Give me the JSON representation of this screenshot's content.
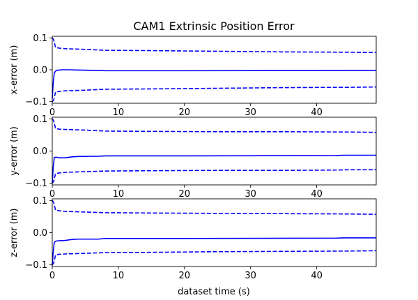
{
  "chart_data": {
    "type": "line",
    "title": "CAM1 Extrinsic Position Error",
    "xlabel": "dataset time (s)",
    "xlim": [
      0,
      49
    ],
    "xticks": [
      0,
      10,
      20,
      30,
      40
    ],
    "grid": false,
    "line_color": "#0000ff",
    "panels": [
      {
        "ylabel": "x-error (m)",
        "ylim": [
          -0.105,
          0.105
        ],
        "yticks": [
          -0.1,
          0.0,
          0.1
        ],
        "ytick_labels": [
          "−0.1",
          "0.0",
          "0.1"
        ],
        "series": [
          {
            "style": "dashed",
            "points": [
              [
                0,
                0.1
              ],
              [
                0.2,
                0.095
              ],
              [
                0.5,
                0.07
              ],
              [
                1,
                0.068
              ],
              [
                2,
                0.066
              ],
              [
                5,
                0.064
              ],
              [
                8,
                0.061
              ],
              [
                15,
                0.06
              ],
              [
                25,
                0.058
              ],
              [
                35,
                0.056
              ],
              [
                45,
                0.055
              ],
              [
                49,
                0.054
              ]
            ]
          },
          {
            "style": "solid",
            "points": [
              [
                0,
                -0.09
              ],
              [
                0.15,
                -0.04
              ],
              [
                0.3,
                -0.01
              ],
              [
                0.6,
                -0.002
              ],
              [
                1,
                -0.001
              ],
              [
                1.5,
                0.0
              ],
              [
                2.5,
                0.0
              ],
              [
                4,
                -0.001
              ],
              [
                7,
                -0.002
              ],
              [
                8,
                -0.003
              ],
              [
                20,
                -0.003
              ],
              [
                49,
                -0.002
              ]
            ]
          },
          {
            "style": "dashed",
            "points": [
              [
                0,
                -0.1
              ],
              [
                0.2,
                -0.095
              ],
              [
                0.5,
                -0.07
              ],
              [
                1,
                -0.068
              ],
              [
                2,
                -0.066
              ],
              [
                5,
                -0.064
              ],
              [
                8,
                -0.061
              ],
              [
                15,
                -0.06
              ],
              [
                25,
                -0.058
              ],
              [
                35,
                -0.056
              ],
              [
                45,
                -0.055
              ],
              [
                49,
                -0.054
              ]
            ]
          }
        ]
      },
      {
        "ylabel": "y-error (m)",
        "ylim": [
          -0.105,
          0.105
        ],
        "yticks": [
          -0.1,
          0.0,
          0.1
        ],
        "ytick_labels": [
          "−0.1",
          "0.0",
          "0.1"
        ],
        "series": [
          {
            "style": "dashed",
            "points": [
              [
                0,
                0.1
              ],
              [
                0.2,
                0.095
              ],
              [
                0.5,
                0.07
              ],
              [
                1,
                0.068
              ],
              [
                2,
                0.067
              ],
              [
                5,
                0.065
              ],
              [
                8,
                0.062
              ],
              [
                15,
                0.061
              ],
              [
                25,
                0.06
              ],
              [
                35,
                0.06
              ],
              [
                45,
                0.059
              ],
              [
                49,
                0.058
              ]
            ]
          },
          {
            "style": "solid",
            "points": [
              [
                0,
                -0.1
              ],
              [
                0.15,
                -0.05
              ],
              [
                0.3,
                -0.02
              ],
              [
                0.6,
                -0.019
              ],
              [
                1,
                -0.021
              ],
              [
                2,
                -0.021
              ],
              [
                3,
                -0.018
              ],
              [
                4,
                -0.017
              ],
              [
                7,
                -0.016
              ],
              [
                8,
                -0.015
              ],
              [
                20,
                -0.015
              ],
              [
                43,
                -0.014
              ],
              [
                44,
                -0.013
              ],
              [
                49,
                -0.013
              ]
            ]
          },
          {
            "style": "dashed",
            "points": [
              [
                0,
                -0.1
              ],
              [
                0.2,
                -0.095
              ],
              [
                0.5,
                -0.07
              ],
              [
                1,
                -0.068
              ],
              [
                2,
                -0.066
              ],
              [
                5,
                -0.064
              ],
              [
                8,
                -0.062
              ],
              [
                15,
                -0.061
              ],
              [
                25,
                -0.06
              ],
              [
                35,
                -0.06
              ],
              [
                43,
                -0.059
              ],
              [
                45,
                -0.058
              ],
              [
                49,
                -0.058
              ]
            ]
          }
        ]
      },
      {
        "ylabel": "z-error (m)",
        "ylim": [
          -0.105,
          0.105
        ],
        "yticks": [
          -0.1,
          0.0,
          0.1
        ],
        "ytick_labels": [
          "−0.1",
          "0.0",
          "0.1"
        ],
        "series": [
          {
            "style": "dashed",
            "points": [
              [
                0,
                0.1
              ],
              [
                0.2,
                0.095
              ],
              [
                0.5,
                0.07
              ],
              [
                1,
                0.068
              ],
              [
                2,
                0.066
              ],
              [
                5,
                0.064
              ],
              [
                8,
                0.062
              ],
              [
                15,
                0.061
              ],
              [
                25,
                0.06
              ],
              [
                35,
                0.059
              ],
              [
                45,
                0.058
              ],
              [
                49,
                0.057
              ]
            ]
          },
          {
            "style": "solid",
            "points": [
              [
                0,
                -0.1
              ],
              [
                0.15,
                -0.06
              ],
              [
                0.3,
                -0.03
              ],
              [
                0.6,
                -0.026
              ],
              [
                1,
                -0.025
              ],
              [
                2,
                -0.024
              ],
              [
                3,
                -0.021
              ],
              [
                4,
                -0.02
              ],
              [
                7,
                -0.02
              ],
              [
                8,
                -0.018
              ],
              [
                20,
                -0.018
              ],
              [
                43,
                -0.017
              ],
              [
                44,
                -0.016
              ],
              [
                49,
                -0.016
              ]
            ]
          },
          {
            "style": "dashed",
            "points": [
              [
                0,
                -0.1
              ],
              [
                0.2,
                -0.095
              ],
              [
                0.5,
                -0.07
              ],
              [
                1,
                -0.067
              ],
              [
                2,
                -0.066
              ],
              [
                5,
                -0.064
              ],
              [
                8,
                -0.062
              ],
              [
                15,
                -0.061
              ],
              [
                25,
                -0.059
              ],
              [
                35,
                -0.058
              ],
              [
                45,
                -0.057
              ],
              [
                49,
                -0.056
              ]
            ]
          }
        ]
      }
    ]
  }
}
